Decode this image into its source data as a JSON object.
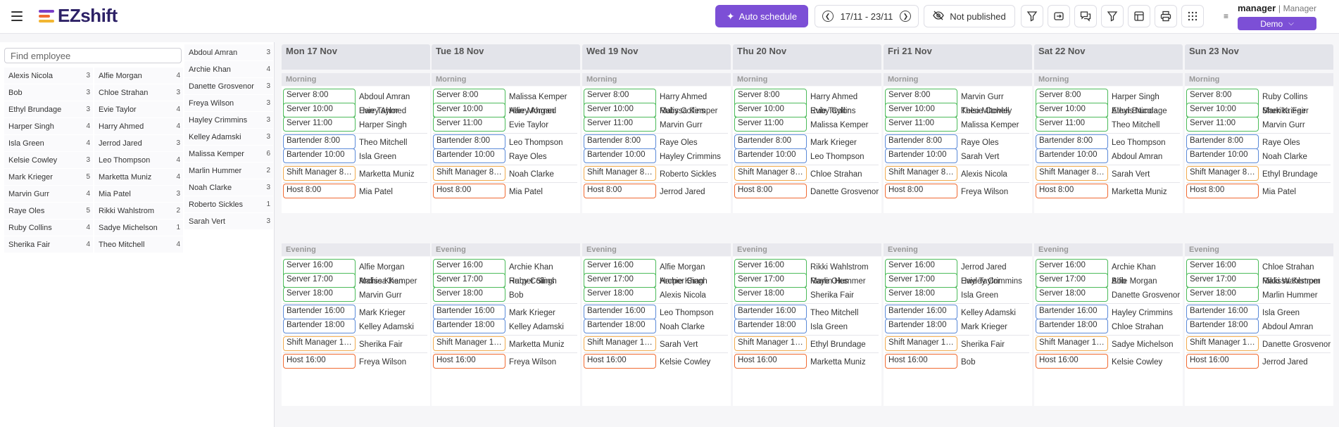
{
  "brand": {
    "name": "EZshift",
    "colors": {
      "purple": "#7c4fd6",
      "logo_bars": [
        "#7a3ec8",
        "#f06a32",
        "#f2b632"
      ],
      "server": "#4cbb5a",
      "bartender": "#5b8ad8",
      "shift_manager": "#f0aa4e",
      "host": "#f06a32"
    }
  },
  "toolbar": {
    "auto_schedule_label": "Auto schedule",
    "auto_schedule_icon": "sparkle-icon",
    "date_range": "17/11 - 23/11",
    "publish_status": "Not published",
    "icons": [
      "filter-icon",
      "copy-icon",
      "chat-icon",
      "filter-icon",
      "layout-icon",
      "print-icon",
      "apps-grid-icon"
    ]
  },
  "user": {
    "name": "manager",
    "role": "Manager",
    "workspace": "Demo"
  },
  "search": {
    "placeholder": "Find employee"
  },
  "employees": {
    "col1": [
      {
        "name": "Alexis Nicola",
        "count": "3"
      },
      {
        "name": "Bob",
        "count": "3"
      },
      {
        "name": "Ethyl Brundage",
        "count": "3"
      },
      {
        "name": "Harper Singh",
        "count": "4"
      },
      {
        "name": "Isla Green",
        "count": "4"
      },
      {
        "name": "Kelsie Cowley",
        "count": "3"
      },
      {
        "name": "Mark Krieger",
        "count": "5"
      },
      {
        "name": "Marvin Gurr",
        "count": "4"
      },
      {
        "name": "Raye Oles",
        "count": "5"
      },
      {
        "name": "Ruby Collins",
        "count": "4"
      },
      {
        "name": "Sherika Fair",
        "count": "4"
      }
    ],
    "col2": [
      {
        "name": "Alfie Morgan",
        "count": "4"
      },
      {
        "name": "Chloe Strahan",
        "count": "3"
      },
      {
        "name": "Evie Taylor",
        "count": "4"
      },
      {
        "name": "Harry Ahmed",
        "count": "4"
      },
      {
        "name": "Jerrod Jared",
        "count": "3"
      },
      {
        "name": "Leo Thompson",
        "count": "4"
      },
      {
        "name": "Marketta Muniz",
        "count": "4"
      },
      {
        "name": "Mia Patel",
        "count": "3"
      },
      {
        "name": "Rikki Wahlstrom",
        "count": "2"
      },
      {
        "name": "Sadye Michelson",
        "count": "1"
      },
      {
        "name": "Theo Mitchell",
        "count": "4"
      }
    ],
    "col3": [
      {
        "name": "Abdoul Amran",
        "count": "3"
      },
      {
        "name": "Archie Khan",
        "count": "4"
      },
      {
        "name": "Danette Grosvenor",
        "count": "3"
      },
      {
        "name": "Freya Wilson",
        "count": "3"
      },
      {
        "name": "Hayley Crimmins",
        "count": "3"
      },
      {
        "name": "Kelley Adamski",
        "count": "3"
      },
      {
        "name": "Malissa Kemper",
        "count": "6"
      },
      {
        "name": "Marlin Hummer",
        "count": "2"
      },
      {
        "name": "Noah Clarke",
        "count": "3"
      },
      {
        "name": "Roberto Sickles",
        "count": "1"
      },
      {
        "name": "Sarah Vert",
        "count": "3"
      }
    ]
  },
  "schedule": {
    "section_labels": {
      "morning": "Morning",
      "evening": "Evening"
    },
    "days": [
      {
        "label": "Mon 17 Nov",
        "morning": [
          [
            "Server 8:00",
            "Abdoul Amran",
            "Harry Ahmed"
          ],
          [
            "Server 10:00",
            "Evie Taylor"
          ],
          [
            "Server 11:00",
            "Harper Singh"
          ],
          [
            "Bartender 8:00",
            "Theo Mitchell"
          ],
          [
            "Bartender 10:00",
            "Isla Green"
          ],
          [
            "Shift Manager 8:00",
            "Marketta Muniz"
          ],
          [
            "Host 8:00",
            "Mia Patel"
          ]
        ],
        "evening": [
          [
            "Server 16:00",
            "Alfie Morgan",
            "Archie Khan"
          ],
          [
            "Server 17:00",
            "Malissa Kemper"
          ],
          [
            "Server 18:00",
            "Marvin Gurr"
          ],
          [
            "Bartender 16:00",
            "Mark Krieger"
          ],
          [
            "Bartender 18:00",
            "Kelley Adamski"
          ],
          [
            "Shift Manager 16:00",
            "Sherika Fair"
          ],
          [
            "Host 16:00",
            "Freya Wilson"
          ]
        ]
      },
      {
        "label": "Tue 18 Nov",
        "morning": [
          [
            "Server 8:00",
            "Malissa Kemper",
            "Harry Ahmed"
          ],
          [
            "Server 10:00",
            "Alfie Morgan"
          ],
          [
            "Server 11:00",
            "Evie Taylor"
          ],
          [
            "Bartender 8:00",
            "Leo Thompson"
          ],
          [
            "Bartender 10:00",
            "Raye Oles"
          ],
          [
            "Shift Manager 8:00",
            "Noah Clarke"
          ],
          [
            "Host 8:00",
            "Mia Patel"
          ]
        ],
        "evening": [
          [
            "Server 16:00",
            "Archie Khan",
            "Harper Singh"
          ],
          [
            "Server 17:00",
            "Ruby Collins"
          ],
          [
            "Server 18:00",
            "Bob"
          ],
          [
            "Bartender 16:00",
            "Mark Krieger"
          ],
          [
            "Bartender 18:00",
            "Kelley Adamski"
          ],
          [
            "Shift Manager 16:00",
            "Marketta Muniz"
          ],
          [
            "Host 16:00",
            "Freya Wilson"
          ]
        ]
      },
      {
        "label": "Wed 19 Nov",
        "morning": [
          [
            "Server 8:00",
            "Harry Ahmed",
            "Malissa Kemper"
          ],
          [
            "Server 10:00",
            "Ruby Collins"
          ],
          [
            "Server 11:00",
            "Marvin Gurr"
          ],
          [
            "Bartender 8:00",
            "Raye Oles"
          ],
          [
            "Bartender 10:00",
            "Hayley Crimmins"
          ],
          [
            "Shift Manager 8:00",
            "Roberto Sickles"
          ],
          [
            "Host 8:00",
            "Jerrod Jared"
          ]
        ],
        "evening": [
          [
            "Server 16:00",
            "Alfie Morgan",
            "Archie Khan"
          ],
          [
            "Server 17:00",
            "Harper Singh"
          ],
          [
            "Server 18:00",
            "Alexis Nicola"
          ],
          [
            "Bartender 16:00",
            "Leo Thompson"
          ],
          [
            "Bartender 18:00",
            "Noah Clarke"
          ],
          [
            "Shift Manager 16:00",
            "Sarah Vert"
          ],
          [
            "Host 16:00",
            "Kelsie Cowley"
          ]
        ]
      },
      {
        "label": "Thu 20 Nov",
        "morning": [
          [
            "Server 8:00",
            "Harry Ahmed",
            "Ruby Collins"
          ],
          [
            "Server 10:00",
            "Evie Taylor"
          ],
          [
            "Server 11:00",
            "Malissa Kemper"
          ],
          [
            "Bartender 8:00",
            "Mark Krieger"
          ],
          [
            "Bartender 10:00",
            "Leo Thompson"
          ],
          [
            "Shift Manager 8:00",
            "Chloe Strahan"
          ],
          [
            "Host 8:00",
            "Danette Grosvenor"
          ]
        ],
        "evening": [
          [
            "Server 16:00",
            "Rikki Wahlstrom",
            "Marlin Hummer"
          ],
          [
            "Server 17:00",
            "Raye Oles"
          ],
          [
            "Server 18:00",
            "Sherika Fair"
          ],
          [
            "Bartender 16:00",
            "Theo Mitchell"
          ],
          [
            "Bartender 18:00",
            "Isla Green"
          ],
          [
            "Shift Manager 16:00",
            "Ethyl Brundage"
          ],
          [
            "Host 16:00",
            "Marketta Muniz"
          ]
        ]
      },
      {
        "label": "Fri 21 Nov",
        "morning": [
          [
            "Server 8:00",
            "Marvin Gurr",
            "Kelsie Cowley"
          ],
          [
            "Server 10:00",
            "Theo Mitchell"
          ],
          [
            "Server 11:00",
            "Malissa Kemper"
          ],
          [
            "Bartender 8:00",
            "Raye Oles"
          ],
          [
            "Bartender 10:00",
            "Sarah Vert"
          ],
          [
            "Shift Manager 8:00",
            "Alexis Nicola"
          ],
          [
            "Host 8:00",
            "Freya Wilson"
          ]
        ],
        "evening": [
          [
            "Server 16:00",
            "Jerrod Jared",
            "Hayley Crimmins"
          ],
          [
            "Server 17:00",
            "Evie Taylor"
          ],
          [
            "Server 18:00",
            "Isla Green"
          ],
          [
            "Bartender 16:00",
            "Kelley Adamski"
          ],
          [
            "Bartender 18:00",
            "Mark Krieger"
          ],
          [
            "Shift Manager 16:00",
            "Sherika Fair"
          ],
          [
            "Host 16:00",
            "Bob"
          ]
        ]
      },
      {
        "label": "Sat 22 Nov",
        "morning": [
          [
            "Server 8:00",
            "Harper Singh",
            "Ethyl Brundage"
          ],
          [
            "Server 10:00",
            "Alexis Nicola"
          ],
          [
            "Server 11:00",
            "Theo Mitchell"
          ],
          [
            "Bartender 8:00",
            "Leo Thompson"
          ],
          [
            "Bartender 10:00",
            "Abdoul Amran"
          ],
          [
            "Shift Manager 8:00",
            "Sarah Vert"
          ],
          [
            "Host 8:00",
            "Marketta Muniz"
          ]
        ],
        "evening": [
          [
            "Server 16:00",
            "Archie Khan",
            "Alfie Morgan"
          ],
          [
            "Server 17:00",
            "Bob"
          ],
          [
            "Server 18:00",
            "Danette Grosvenor"
          ],
          [
            "Bartender 16:00",
            "Hayley Crimmins"
          ],
          [
            "Bartender 18:00",
            "Chloe Strahan"
          ],
          [
            "Shift Manager 16:00",
            "Sadye Michelson"
          ],
          [
            "Host 16:00",
            "Kelsie Cowley"
          ]
        ]
      },
      {
        "label": "Sun 23 Nov",
        "morning": [
          [
            "Server 8:00",
            "Ruby Collins",
            "Sherika Fair"
          ],
          [
            "Server 10:00",
            "Mark Krieger"
          ],
          [
            "Server 11:00",
            "Marvin Gurr"
          ],
          [
            "Bartender 8:00",
            "Raye Oles"
          ],
          [
            "Bartender 10:00",
            "Noah Clarke"
          ],
          [
            "Shift Manager 8:00",
            "Ethyl Brundage"
          ],
          [
            "Host 8:00",
            "Mia Patel"
          ]
        ],
        "evening": [
          [
            "Server 16:00",
            "Chloe Strahan",
            "Rikki Wahlstrom"
          ],
          [
            "Server 17:00",
            "Malissa Kemper"
          ],
          [
            "Server 18:00",
            "Marlin Hummer"
          ],
          [
            "Bartender 16:00",
            "Isla Green"
          ],
          [
            "Bartender 18:00",
            "Abdoul Amran"
          ],
          [
            "Shift Manager 16:00",
            "Danette Grosvenor"
          ],
          [
            "Host 16:00",
            "Jerrod Jared"
          ]
        ]
      }
    ]
  }
}
